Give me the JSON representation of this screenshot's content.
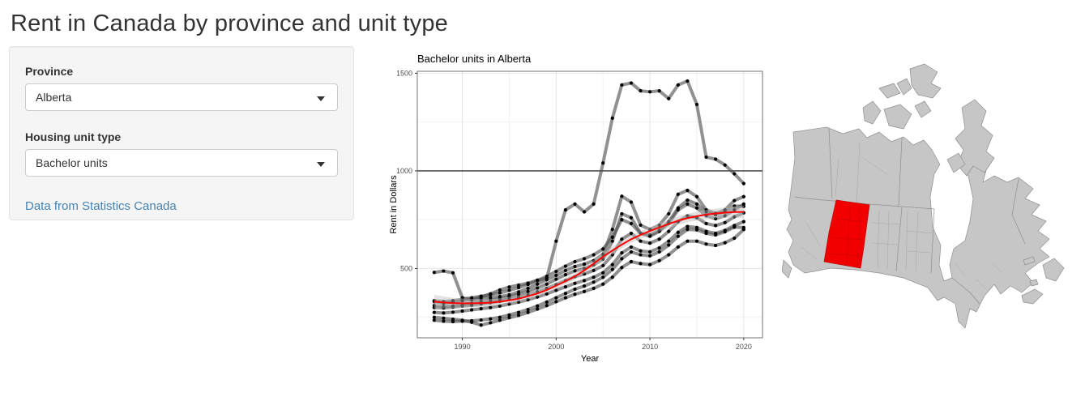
{
  "page": {
    "title": "Rent in Canada by province and unit type"
  },
  "sidebar": {
    "province_label": "Province",
    "province_value": "Alberta",
    "unit_type_label": "Housing unit type",
    "unit_type_value": "Bachelor units",
    "link_text": "Data from Statistics Canada"
  },
  "map": {
    "highlighted_region": "Alberta",
    "highlight_color": "#f20000",
    "highlight_border_color": "#c00000",
    "land_color": "#c6c6c6",
    "border_color": "#8f8f8f"
  },
  "chart_data": {
    "type": "line",
    "title": "Bachelor units in Alberta",
    "xlabel": "Year",
    "ylabel": "Rent in Dollars",
    "xlim": [
      1985.2,
      2022
    ],
    "ylim": [
      145,
      1510
    ],
    "x_major_ticks": [
      1990,
      2000,
      2010,
      2020
    ],
    "x_minor_ticks": [
      1995,
      2005,
      2015
    ],
    "y_major_ticks": [
      500,
      1000,
      1500
    ],
    "y_minor_ticks": [
      250,
      750,
      1250
    ],
    "grid": true,
    "legend": false,
    "hline": {
      "y": 1000,
      "color": "#333333"
    },
    "line_color": "#4d4d4d",
    "line_opacity": 0.62,
    "point_color": "#000000",
    "years": [
      1987,
      1988,
      1989,
      1990,
      1991,
      1992,
      1993,
      1994,
      1995,
      1996,
      1997,
      1998,
      1999,
      2000,
      2001,
      2002,
      2003,
      2004,
      2005,
      2006,
      2007,
      2008,
      2009,
      2010,
      2011,
      2012,
      2013,
      2014,
      2015,
      2016,
      2017,
      2018,
      2019,
      2020
    ],
    "series": [
      {
        "name": "line-1",
        "values": [
          480,
          487,
          478,
          350,
          340,
          355,
          370,
          390,
          405,
          415,
          425,
          440,
          450,
          640,
          800,
          830,
          790,
          830,
          1040,
          1270,
          1440,
          1450,
          1410,
          1405,
          1410,
          1370,
          1440,
          1460,
          1340,
          1070,
          1060,
          1030,
          985,
          935
        ]
      },
      {
        "name": "line-2",
        "values": [
          330,
          322,
          328,
          335,
          340,
          345,
          350,
          356,
          365,
          380,
          398,
          420,
          442,
          465,
          490,
          510,
          522,
          540,
          572,
          700,
          870,
          840,
          722,
          700,
          722,
          780,
          880,
          900,
          868,
          800,
          782,
          800,
          848,
          868
        ]
      },
      {
        "name": "line-3",
        "values": [
          310,
          305,
          308,
          315,
          322,
          330,
          338,
          345,
          355,
          368,
          382,
          400,
          420,
          445,
          468,
          488,
          500,
          518,
          548,
          640,
          780,
          760,
          680,
          665,
          690,
          730,
          800,
          830,
          810,
          770,
          755,
          770,
          800,
          830
        ]
      },
      {
        "name": "line-4",
        "values": [
          300,
          298,
          302,
          308,
          312,
          318,
          325,
          332,
          342,
          352,
          365,
          380,
          398,
          418,
          438,
          458,
          472,
          490,
          515,
          570,
          650,
          680,
          640,
          630,
          650,
          690,
          740,
          770,
          760,
          730,
          720,
          735,
          765,
          785
        ]
      },
      {
        "name": "line-5",
        "values": [
          275,
          272,
          276,
          282,
          288,
          294,
          300,
          308,
          318,
          328,
          340,
          354,
          370,
          388,
          406,
          424,
          438,
          455,
          478,
          520,
          580,
          610,
          590,
          585,
          605,
          640,
          685,
          715,
          710,
          690,
          680,
          695,
          720,
          740
        ]
      },
      {
        "name": "line-6",
        "values": [
          250,
          245,
          240,
          235,
          225,
          210,
          222,
          235,
          248,
          260,
          275,
          292,
          310,
          330,
          350,
          368,
          382,
          398,
          420,
          455,
          505,
          535,
          525,
          520,
          540,
          570,
          610,
          640,
          640,
          625,
          618,
          632,
          655,
          700
        ]
      },
      {
        "name": "line-7",
        "values": [
          335,
          330,
          335,
          342,
          350,
          358,
          365,
          375,
          388,
          402,
          418,
          438,
          460,
          485,
          512,
          535,
          550,
          570,
          600,
          660,
          750,
          730,
          680,
          672,
          695,
          740,
          810,
          850,
          830,
          790,
          775,
          790,
          820,
          818
        ]
      },
      {
        "name": "line-8",
        "values": [
          235,
          230,
          228,
          230,
          232,
          236,
          242,
          250,
          262,
          275,
          290,
          308,
          328,
          350,
          372,
          394,
          410,
          430,
          455,
          495,
          550,
          585,
          570,
          565,
          585,
          620,
          665,
          700,
          698,
          680,
          672,
          688,
          712,
          710
        ]
      }
    ],
    "smooth": {
      "name": "loess-trend",
      "color": "#ff0000",
      "ribbon_color": "#bfbfbf",
      "values": [
        330,
        326,
        323,
        322,
        322,
        323,
        325,
        330,
        337,
        345,
        358,
        372,
        390,
        412,
        435,
        460,
        490,
        525,
        560,
        592,
        622,
        650,
        672,
        692,
        710,
        728,
        745,
        758,
        768,
        776,
        782,
        786,
        789,
        790
      ],
      "ribbon_lower": [
        295,
        295,
        296,
        298,
        300,
        303,
        306,
        312,
        320,
        329,
        342,
        357,
        375,
        396,
        418,
        443,
        472,
        506,
        540,
        572,
        602,
        630,
        652,
        672,
        690,
        707,
        723,
        736,
        745,
        752,
        757,
        759,
        760,
        758
      ],
      "ribbon_upper": [
        365,
        357,
        350,
        346,
        344,
        343,
        344,
        348,
        354,
        361,
        374,
        387,
        405,
        428,
        452,
        477,
        508,
        544,
        580,
        612,
        642,
        670,
        692,
        712,
        730,
        749,
        767,
        780,
        791,
        800,
        807,
        813,
        818,
        822
      ]
    }
  }
}
